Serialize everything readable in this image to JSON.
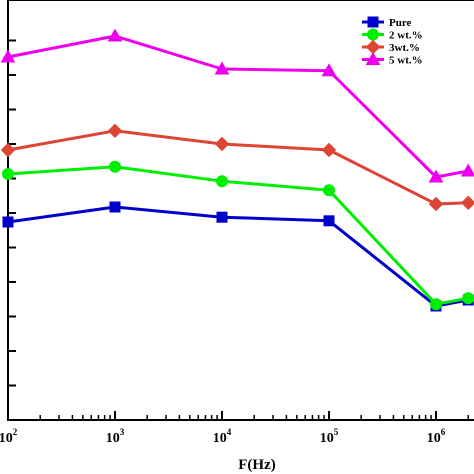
{
  "chart_data": {
    "type": "line",
    "x": [
      100,
      1000,
      10000,
      100000,
      1000000,
      2000000
    ],
    "x_scale": "log",
    "x_ticks": [
      {
        "base": "10",
        "exp": "2",
        "value": 100
      },
      {
        "base": "10",
        "exp": "3",
        "value": 1000
      },
      {
        "base": "10",
        "exp": "4",
        "value": 10000
      },
      {
        "base": "10",
        "exp": "5",
        "value": 100000
      },
      {
        "base": "10",
        "exp": "6",
        "value": 1000000
      }
    ],
    "xlabel": "F(Hz)",
    "ylabel": "",
    "y_tick_count": 12,
    "legend_position": "top-right",
    "grid": false,
    "series": [
      {
        "name": "Pure",
        "color": "#0000cc",
        "marker": "square",
        "values": [
          3.3,
          3.55,
          3.38,
          3.32,
          1.9,
          2.0
        ]
      },
      {
        "name": "2 wt.%",
        "color": "#00ee00",
        "marker": "circle",
        "values": [
          4.1,
          4.22,
          3.98,
          3.83,
          1.93,
          2.03
        ]
      },
      {
        "name": "3wt.%",
        "color": "#dd4433",
        "marker": "diamond",
        "values": [
          4.5,
          4.82,
          4.6,
          4.5,
          3.6,
          3.62
        ]
      },
      {
        "name": "5 wt.%",
        "color": "#ee00ee",
        "marker": "triangle",
        "values": [
          6.05,
          6.4,
          5.85,
          5.82,
          4.05,
          4.15
        ]
      }
    ]
  }
}
